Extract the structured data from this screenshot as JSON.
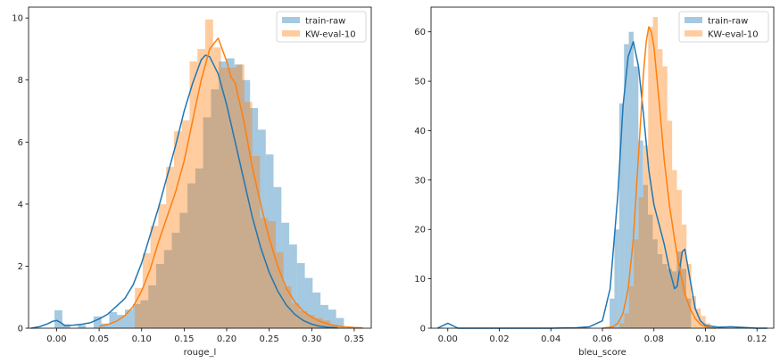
{
  "chart_data": [
    {
      "type": "histogram_kde",
      "xlabel": "rouge_l",
      "ylabel": "",
      "xlim": [
        -0.033,
        0.37
      ],
      "ylim": [
        0,
        10.35
      ],
      "xticks": [
        0.0,
        0.05,
        0.1,
        0.15,
        0.2,
        0.25,
        0.3,
        0.35
      ],
      "xtick_labels": [
        "0.00",
        "0.05",
        "0.10",
        "0.15",
        "0.20",
        "0.25",
        "0.30",
        "0.35"
      ],
      "yticks": [
        0,
        2,
        4,
        6,
        8,
        10
      ],
      "ytick_labels": [
        "0",
        "2",
        "4",
        "6",
        "8",
        "10"
      ],
      "legend_position": "top-right",
      "series": [
        {
          "name": "train-raw",
          "color": "#1f77b4",
          "bins": {
            "start": -0.0025,
            "width": 0.0092,
            "heights": [
              0.58,
              0.13,
              0,
              0.1,
              0,
              0.38,
              0.15,
              0.52,
              0.43,
              0.6,
              0.78,
              0.9,
              1.38,
              2.07,
              2.52,
              3.08,
              3.72,
              4.67,
              5.15,
              6.8,
              7.7,
              8.6,
              8.7,
              8.5,
              8.0,
              7.1,
              6.4,
              5.6,
              4.55,
              3.4,
              2.7,
              2.1,
              1.62,
              1.15,
              0.75,
              0.6,
              0.33
            ]
          },
          "kde": {
            "x": [
              -0.03,
              -0.02,
              -0.01,
              -0.005,
              0.0,
              0.005,
              0.01,
              0.02,
              0.03,
              0.04,
              0.05,
              0.06,
              0.07,
              0.08,
              0.09,
              0.1,
              0.11,
              0.12,
              0.13,
              0.14,
              0.15,
              0.16,
              0.17,
              0.175,
              0.18,
              0.19,
              0.2,
              0.21,
              0.22,
              0.23,
              0.24,
              0.25,
              0.26,
              0.27,
              0.28,
              0.29,
              0.3,
              0.31,
              0.32,
              0.33
            ],
            "y": [
              0.0,
              0.05,
              0.15,
              0.22,
              0.25,
              0.18,
              0.08,
              0.1,
              0.13,
              0.18,
              0.3,
              0.45,
              0.7,
              0.95,
              1.4,
              2.1,
              3.0,
              3.9,
              4.9,
              5.9,
              7.0,
              7.9,
              8.65,
              8.8,
              8.75,
              8.2,
              7.2,
              6.0,
              4.8,
              3.6,
              2.6,
              1.8,
              1.2,
              0.75,
              0.45,
              0.25,
              0.13,
              0.06,
              0.03,
              0.01
            ]
          }
        },
        {
          "name": "KW-eval-10",
          "color": "#ff7f0e",
          "bins": {
            "start": 0.092,
            "width": 0.0092,
            "heights": [
              1.3,
              2.42,
              3.3,
              4.0,
              5.2,
              6.35,
              6.7,
              8.6,
              9.0,
              9.95,
              9.05,
              8.4,
              8.4,
              8.5,
              7.3,
              5.55,
              3.55,
              3.45,
              2.45,
              1.35,
              0.8,
              0.55,
              0.43,
              0.33,
              0.25,
              0.12
            ]
          },
          "kde": {
            "x": [
              0.05,
              0.06,
              0.07,
              0.08,
              0.09,
              0.1,
              0.11,
              0.12,
              0.13,
              0.14,
              0.15,
              0.16,
              0.17,
              0.18,
              0.19,
              0.2,
              0.205,
              0.21,
              0.22,
              0.23,
              0.24,
              0.25,
              0.26,
              0.27,
              0.28,
              0.29,
              0.3,
              0.31,
              0.32,
              0.33,
              0.34,
              0.35,
              0.36
            ],
            "y": [
              0.06,
              0.12,
              0.22,
              0.4,
              0.7,
              1.2,
              1.9,
              2.8,
              3.6,
              4.4,
              5.4,
              6.7,
              8.0,
              9.0,
              9.35,
              8.6,
              8.1,
              7.9,
              6.7,
              5.2,
              4.0,
              2.9,
              2.0,
              1.3,
              0.85,
              0.55,
              0.35,
              0.22,
              0.13,
              0.07,
              0.04,
              0.02,
              0.01
            ]
          }
        }
      ]
    },
    {
      "type": "histogram_kde",
      "xlabel": "bleu_score",
      "ylabel": "",
      "xlim": [
        -0.0065,
        0.1265
      ],
      "ylim": [
        0,
        65
      ],
      "xticks": [
        0.0,
        0.02,
        0.04,
        0.06,
        0.08,
        0.1,
        0.12
      ],
      "xtick_labels": [
        "0.00",
        "0.02",
        "0.04",
        "0.06",
        "0.08",
        "0.10",
        "0.12"
      ],
      "yticks": [
        0,
        10,
        20,
        30,
        40,
        50,
        60
      ],
      "ytick_labels": [
        "0",
        "10",
        "20",
        "30",
        "40",
        "50",
        "60"
      ],
      "legend_position": "top-right",
      "series": [
        {
          "name": "train-raw",
          "color": "#1f77b4",
          "bins": {
            "start": 0.0628,
            "width": 0.00186,
            "heights": [
              6.0,
              20.0,
              45.5,
              57.5,
              60.0,
              53.0,
              38.0,
              29.0,
              23.0,
              18.0,
              15.0,
              13.0,
              12.0,
              11.5,
              15.5,
              12.0,
              6.0
            ]
          },
          "kde": {
            "x": [
              -0.004,
              -0.002,
              0.0,
              0.002,
              0.004,
              0.01,
              0.02,
              0.03,
              0.04,
              0.05,
              0.055,
              0.06,
              0.063,
              0.066,
              0.068,
              0.07,
              0.072,
              0.074,
              0.076,
              0.078,
              0.08,
              0.082,
              0.084,
              0.086,
              0.088,
              0.089,
              0.09,
              0.091,
              0.092,
              0.094,
              0.096,
              0.098,
              0.1,
              0.105,
              0.11,
              0.12,
              0.124
            ],
            "y": [
              0.0,
              0.5,
              1.0,
              0.5,
              0.0,
              0.0,
              0.0,
              0.0,
              0.0,
              0.1,
              0.3,
              1.5,
              8.0,
              27.0,
              45.0,
              55.0,
              58.0,
              53.0,
              43.0,
              32.0,
              25.0,
              21.0,
              17.0,
              12.0,
              8.0,
              8.5,
              12.0,
              15.5,
              16.0,
              10.0,
              4.0,
              1.5,
              0.6,
              0.2,
              0.3,
              0.0,
              0.0
            ]
          }
        },
        {
          "name": "KW-eval-10",
          "color": "#ff7f0e",
          "bins": {
            "start": 0.0666,
            "width": 0.00186,
            "heights": [
              1.0,
              3.0,
              8.5,
              18.0,
              26.5,
              37.0,
              61.0,
              63.0,
              56.5,
              53.0,
              42.0,
              32.0,
              28.0,
              21.0,
              13.0,
              6.5,
              4.0,
              2.5,
              1.0
            ]
          },
          "kde": {
            "x": [
              0.06,
              0.064,
              0.066,
              0.068,
              0.07,
              0.072,
              0.074,
              0.076,
              0.077,
              0.078,
              0.079,
              0.08,
              0.082,
              0.084,
              0.086,
              0.088,
              0.09,
              0.092,
              0.094,
              0.096,
              0.098,
              0.1,
              0.102,
              0.104
            ],
            "y": [
              0.0,
              0.3,
              1.0,
              3.0,
              8.0,
              18.0,
              35.0,
              52.0,
              58.0,
              61.0,
              60.0,
              57.0,
              46.0,
              34.0,
              25.0,
              18.0,
              12.0,
              7.0,
              4.0,
              2.0,
              0.8,
              0.3,
              0.1,
              0.0
            ]
          }
        }
      ]
    }
  ]
}
